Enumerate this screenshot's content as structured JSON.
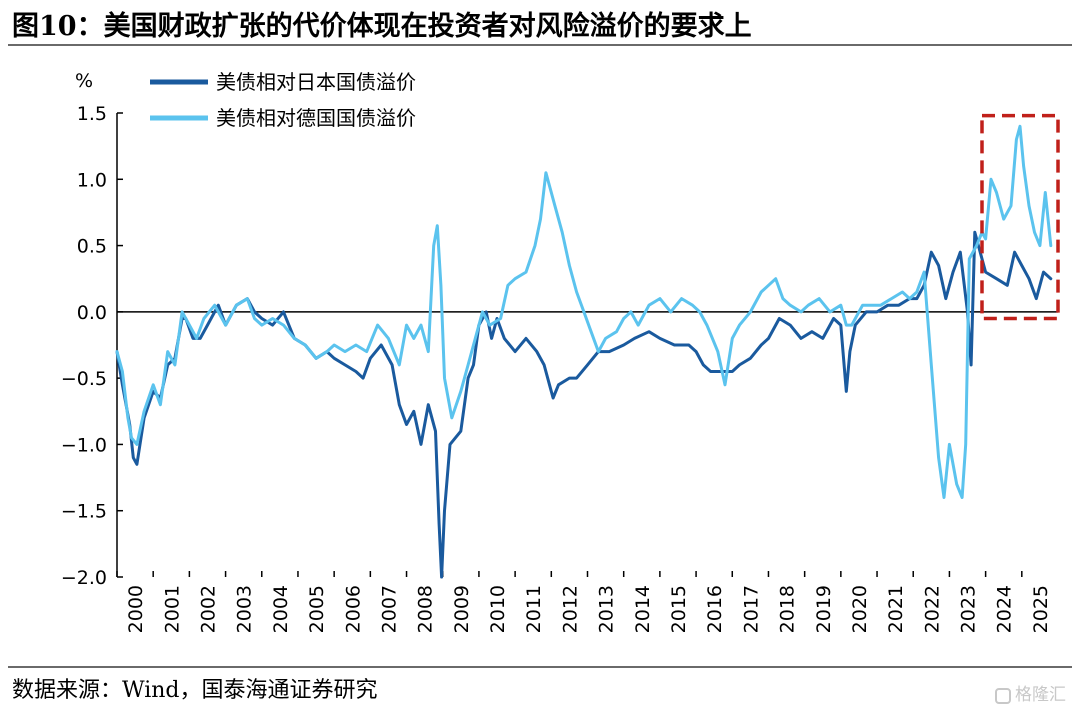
{
  "title": "图10：美国财政扩张的代价体现在投资者对风险溢价的要求上",
  "source": "数据来源：Wind，国泰海通证券研究",
  "watermark": "格隆汇",
  "chart_data": {
    "type": "line",
    "ylabel": "%",
    "ylim": [
      -2.0,
      1.5
    ],
    "yticks": [
      1.5,
      1.0,
      0.5,
      0.0,
      -0.5,
      -1.0,
      -1.5,
      -2.0
    ],
    "ytick_labels": [
      "1.5",
      "1.0",
      "0.5",
      "0.0",
      "−0.5",
      "−1.0",
      "−1.5",
      "−2.0"
    ],
    "xlim": [
      2000,
      2026
    ],
    "xticks": [
      "2000",
      "2001",
      "2002",
      "2003",
      "2004",
      "2005",
      "2006",
      "2007",
      "2008",
      "2009",
      "2010",
      "2011",
      "2012",
      "2013",
      "2014",
      "2015",
      "2016",
      "2017",
      "2018",
      "2019",
      "2020",
      "2021",
      "2022",
      "2023",
      "2024",
      "2025"
    ],
    "grid": false,
    "legend_position": "top-left",
    "highlight_box": {
      "x_start": 2023.9,
      "x_end": 2026.0,
      "y_low": -0.05,
      "y_high": 1.48,
      "color": "#c0201a",
      "note": "dashed red box marking 2024–2025"
    },
    "series": [
      {
        "name": "美债相对日本国债溢价",
        "color": "#1a5a9e",
        "points": [
          [
            2000.0,
            -0.3
          ],
          [
            2000.15,
            -0.55
          ],
          [
            2000.35,
            -0.85
          ],
          [
            2000.45,
            -1.1
          ],
          [
            2000.55,
            -1.15
          ],
          [
            2000.75,
            -0.8
          ],
          [
            2001.0,
            -0.6
          ],
          [
            2001.2,
            -0.65
          ],
          [
            2001.4,
            -0.4
          ],
          [
            2001.6,
            -0.35
          ],
          [
            2001.8,
            -0.05
          ],
          [
            2001.9,
            -0.05
          ],
          [
            2002.1,
            -0.2
          ],
          [
            2002.3,
            -0.2
          ],
          [
            2002.5,
            -0.1
          ],
          [
            2002.8,
            0.05
          ],
          [
            2003.0,
            -0.1
          ],
          [
            2003.3,
            0.05
          ],
          [
            2003.6,
            0.1
          ],
          [
            2003.8,
            0.0
          ],
          [
            2004.0,
            -0.05
          ],
          [
            2004.3,
            -0.1
          ],
          [
            2004.6,
            0.0
          ],
          [
            2004.9,
            -0.2
          ],
          [
            2005.2,
            -0.25
          ],
          [
            2005.5,
            -0.35
          ],
          [
            2005.8,
            -0.3
          ],
          [
            2006.0,
            -0.35
          ],
          [
            2006.3,
            -0.4
          ],
          [
            2006.6,
            -0.45
          ],
          [
            2006.8,
            -0.5
          ],
          [
            2007.0,
            -0.35
          ],
          [
            2007.3,
            -0.25
          ],
          [
            2007.6,
            -0.4
          ],
          [
            2007.8,
            -0.7
          ],
          [
            2008.0,
            -0.85
          ],
          [
            2008.2,
            -0.75
          ],
          [
            2008.4,
            -1.0
          ],
          [
            2008.6,
            -0.7
          ],
          [
            2008.8,
            -0.9
          ],
          [
            2008.9,
            -1.6
          ],
          [
            2008.97,
            -2.0
          ],
          [
            2009.05,
            -1.5
          ],
          [
            2009.2,
            -1.0
          ],
          [
            2009.5,
            -0.9
          ],
          [
            2009.7,
            -0.5
          ],
          [
            2009.85,
            -0.4
          ],
          [
            2010.0,
            -0.1
          ],
          [
            2010.2,
            0.0
          ],
          [
            2010.35,
            -0.2
          ],
          [
            2010.5,
            -0.05
          ],
          [
            2010.7,
            -0.2
          ],
          [
            2011.0,
            -0.3
          ],
          [
            2011.3,
            -0.2
          ],
          [
            2011.6,
            -0.3
          ],
          [
            2011.8,
            -0.4
          ],
          [
            2011.95,
            -0.55
          ],
          [
            2012.05,
            -0.65
          ],
          [
            2012.2,
            -0.55
          ],
          [
            2012.5,
            -0.5
          ],
          [
            2012.7,
            -0.5
          ],
          [
            2013.0,
            -0.4
          ],
          [
            2013.3,
            -0.3
          ],
          [
            2013.6,
            -0.3
          ],
          [
            2014.0,
            -0.25
          ],
          [
            2014.3,
            -0.2
          ],
          [
            2014.7,
            -0.15
          ],
          [
            2015.0,
            -0.2
          ],
          [
            2015.4,
            -0.25
          ],
          [
            2015.8,
            -0.25
          ],
          [
            2016.0,
            -0.3
          ],
          [
            2016.2,
            -0.4
          ],
          [
            2016.4,
            -0.45
          ],
          [
            2016.6,
            -0.45
          ],
          [
            2016.8,
            -0.45
          ],
          [
            2017.0,
            -0.45
          ],
          [
            2017.2,
            -0.4
          ],
          [
            2017.5,
            -0.35
          ],
          [
            2017.8,
            -0.25
          ],
          [
            2018.0,
            -0.2
          ],
          [
            2018.3,
            -0.05
          ],
          [
            2018.6,
            -0.1
          ],
          [
            2018.9,
            -0.2
          ],
          [
            2019.2,
            -0.15
          ],
          [
            2019.5,
            -0.2
          ],
          [
            2019.8,
            -0.05
          ],
          [
            2020.0,
            -0.1
          ],
          [
            2020.15,
            -0.6
          ],
          [
            2020.25,
            -0.3
          ],
          [
            2020.4,
            -0.1
          ],
          [
            2020.7,
            0.0
          ],
          [
            2021.0,
            0.0
          ],
          [
            2021.3,
            0.05
          ],
          [
            2021.6,
            0.05
          ],
          [
            2021.9,
            0.1
          ],
          [
            2022.1,
            0.1
          ],
          [
            2022.3,
            0.2
          ],
          [
            2022.5,
            0.45
          ],
          [
            2022.7,
            0.35
          ],
          [
            2022.9,
            0.1
          ],
          [
            2023.1,
            0.3
          ],
          [
            2023.3,
            0.45
          ],
          [
            2023.5,
            0.0
          ],
          [
            2023.6,
            -0.4
          ],
          [
            2023.7,
            0.6
          ],
          [
            2023.8,
            0.5
          ],
          [
            2024.0,
            0.3
          ],
          [
            2024.3,
            0.25
          ],
          [
            2024.6,
            0.2
          ],
          [
            2024.8,
            0.45
          ],
          [
            2025.0,
            0.35
          ],
          [
            2025.2,
            0.25
          ],
          [
            2025.4,
            0.1
          ],
          [
            2025.6,
            0.3
          ],
          [
            2025.8,
            0.25
          ]
        ]
      },
      {
        "name": "美债相对德国国债溢价",
        "color": "#5bc3ee",
        "points": [
          [
            2000.0,
            -0.3
          ],
          [
            2000.15,
            -0.45
          ],
          [
            2000.3,
            -0.8
          ],
          [
            2000.4,
            -0.95
          ],
          [
            2000.55,
            -1.0
          ],
          [
            2000.75,
            -0.75
          ],
          [
            2001.0,
            -0.55
          ],
          [
            2001.2,
            -0.7
          ],
          [
            2001.4,
            -0.3
          ],
          [
            2001.6,
            -0.4
          ],
          [
            2001.8,
            0.0
          ],
          [
            2002.0,
            -0.1
          ],
          [
            2002.2,
            -0.2
          ],
          [
            2002.4,
            -0.05
          ],
          [
            2002.7,
            0.05
          ],
          [
            2003.0,
            -0.1
          ],
          [
            2003.3,
            0.05
          ],
          [
            2003.6,
            0.1
          ],
          [
            2003.8,
            -0.05
          ],
          [
            2004.0,
            -0.1
          ],
          [
            2004.3,
            -0.05
          ],
          [
            2004.6,
            -0.1
          ],
          [
            2004.9,
            -0.2
          ],
          [
            2005.2,
            -0.25
          ],
          [
            2005.5,
            -0.35
          ],
          [
            2005.8,
            -0.3
          ],
          [
            2006.0,
            -0.25
          ],
          [
            2006.3,
            -0.3
          ],
          [
            2006.6,
            -0.25
          ],
          [
            2006.9,
            -0.3
          ],
          [
            2007.2,
            -0.1
          ],
          [
            2007.5,
            -0.2
          ],
          [
            2007.8,
            -0.4
          ],
          [
            2008.0,
            -0.1
          ],
          [
            2008.2,
            -0.2
          ],
          [
            2008.4,
            -0.1
          ],
          [
            2008.6,
            -0.3
          ],
          [
            2008.75,
            0.5
          ],
          [
            2008.85,
            0.65
          ],
          [
            2008.95,
            0.2
          ],
          [
            2009.05,
            -0.5
          ],
          [
            2009.25,
            -0.8
          ],
          [
            2009.5,
            -0.6
          ],
          [
            2009.7,
            -0.4
          ],
          [
            2009.9,
            -0.2
          ],
          [
            2010.1,
            0.0
          ],
          [
            2010.3,
            -0.1
          ],
          [
            2010.6,
            -0.05
          ],
          [
            2010.8,
            0.2
          ],
          [
            2011.0,
            0.25
          ],
          [
            2011.3,
            0.3
          ],
          [
            2011.55,
            0.5
          ],
          [
            2011.7,
            0.7
          ],
          [
            2011.85,
            1.05
          ],
          [
            2011.95,
            0.95
          ],
          [
            2012.1,
            0.8
          ],
          [
            2012.3,
            0.6
          ],
          [
            2012.5,
            0.35
          ],
          [
            2012.7,
            0.15
          ],
          [
            2012.9,
            0.0
          ],
          [
            2013.1,
            -0.15
          ],
          [
            2013.3,
            -0.3
          ],
          [
            2013.5,
            -0.2
          ],
          [
            2013.8,
            -0.15
          ],
          [
            2014.0,
            -0.05
          ],
          [
            2014.2,
            0.0
          ],
          [
            2014.4,
            -0.1
          ],
          [
            2014.7,
            0.05
          ],
          [
            2015.0,
            0.1
          ],
          [
            2015.3,
            0.0
          ],
          [
            2015.6,
            0.1
          ],
          [
            2015.9,
            0.05
          ],
          [
            2016.1,
            0.0
          ],
          [
            2016.3,
            -0.1
          ],
          [
            2016.6,
            -0.3
          ],
          [
            2016.8,
            -0.55
          ],
          [
            2017.0,
            -0.2
          ],
          [
            2017.2,
            -0.1
          ],
          [
            2017.5,
            0.0
          ],
          [
            2017.8,
            0.15
          ],
          [
            2018.0,
            0.2
          ],
          [
            2018.2,
            0.25
          ],
          [
            2018.4,
            0.1
          ],
          [
            2018.6,
            0.05
          ],
          [
            2018.9,
            0.0
          ],
          [
            2019.1,
            0.05
          ],
          [
            2019.4,
            0.1
          ],
          [
            2019.7,
            0.0
          ],
          [
            2020.0,
            0.05
          ],
          [
            2020.15,
            -0.1
          ],
          [
            2020.3,
            -0.1
          ],
          [
            2020.6,
            0.05
          ],
          [
            2020.9,
            0.05
          ],
          [
            2021.1,
            0.05
          ],
          [
            2021.4,
            0.1
          ],
          [
            2021.7,
            0.15
          ],
          [
            2021.9,
            0.1
          ],
          [
            2022.1,
            0.15
          ],
          [
            2022.3,
            0.3
          ],
          [
            2022.5,
            -0.4
          ],
          [
            2022.7,
            -1.1
          ],
          [
            2022.85,
            -1.4
          ],
          [
            2023.0,
            -1.0
          ],
          [
            2023.2,
            -1.3
          ],
          [
            2023.35,
            -1.4
          ],
          [
            2023.45,
            -1.0
          ],
          [
            2023.55,
            0.4
          ],
          [
            2023.75,
            0.5
          ],
          [
            2023.9,
            0.6
          ],
          [
            2024.0,
            0.55
          ],
          [
            2024.15,
            1.0
          ],
          [
            2024.3,
            0.9
          ],
          [
            2024.5,
            0.7
          ],
          [
            2024.7,
            0.8
          ],
          [
            2024.85,
            1.3
          ],
          [
            2024.95,
            1.4
          ],
          [
            2025.05,
            1.1
          ],
          [
            2025.2,
            0.8
          ],
          [
            2025.35,
            0.6
          ],
          [
            2025.5,
            0.5
          ],
          [
            2025.65,
            0.9
          ],
          [
            2025.8,
            0.5
          ]
        ]
      }
    ]
  }
}
